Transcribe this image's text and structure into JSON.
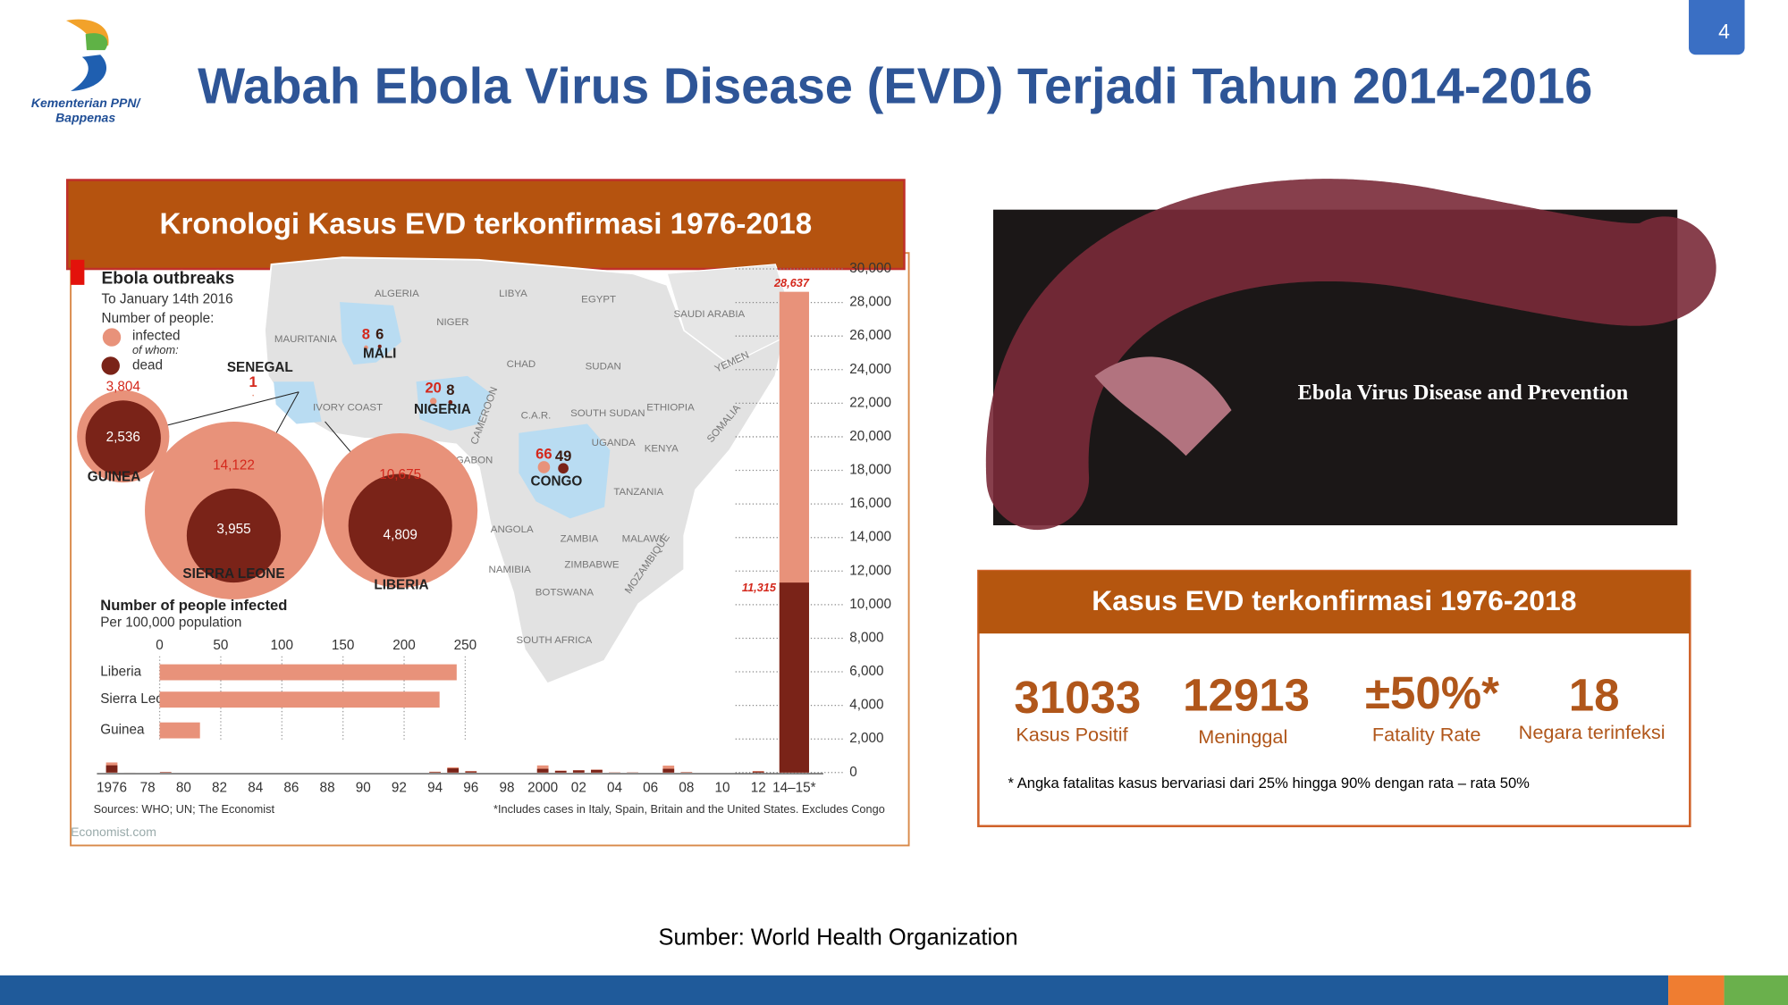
{
  "header": {
    "title": "Wabah Ebola Virus Disease (EVD) Terjadi Tahun 2014-2016",
    "page_number": "4",
    "logo_lines": [
      "Kementerian PPN/",
      "Bappenas"
    ]
  },
  "left_panel": {
    "heading": "Kronologi Kasus EVD terkonfirmasi 1976-2018",
    "credit": "Economist.com",
    "map_labels": [
      "ALGERIA",
      "LIBYA",
      "EGYPT",
      "SAUDI ARABIA",
      "MAURITANIA",
      "NIGER",
      "CHAD",
      "SUDAN",
      "YEMEN",
      "IVORY COAST",
      "CAMEROON",
      "C.A.R.",
      "SOUTH SUDAN",
      "ETHIOPIA",
      "SOMALIA",
      "GABON",
      "UGANDA",
      "KENYA",
      "TANZANIA",
      "ANGOLA",
      "ZAMBIA",
      "MALAWI",
      "MOZAMBIQUE",
      "NAMIBIA",
      "ZIMBABWE",
      "BOTSWANA",
      "SOUTH AFRICA"
    ]
  },
  "chart_data": [
    {
      "type": "bar",
      "title": "Ebola outbreaks",
      "subtitle": "To January 14th 2016",
      "legend_title": "Number of people:",
      "legend_note": "of whom:",
      "sources": "Sources: WHO; UN; The Economist",
      "footnote": "*Includes cases in Italy, Spain, Britain and the United States. Excludes Congo",
      "categories": [
        "1976",
        null,
        "78",
        null,
        "80",
        null,
        "82",
        null,
        "84",
        null,
        "86",
        null,
        "88",
        null,
        "90",
        null,
        "92",
        null,
        "94",
        null,
        "96",
        null,
        "98",
        null,
        "2000",
        null,
        "02",
        null,
        "04",
        null,
        "06",
        null,
        "08",
        null,
        "10",
        null,
        "12",
        null,
        "14–15*"
      ],
      "series": [
        {
          "name": "infected",
          "color": "#e8927a",
          "values": [
            602,
            1,
            null,
            34,
            null,
            null,
            null,
            null,
            null,
            null,
            null,
            null,
            null,
            null,
            null,
            null,
            null,
            null,
            52,
            315,
            91,
            null,
            null,
            null,
            425,
            122,
            143,
            178,
            17,
            12,
            null,
            413,
            32,
            null,
            null,
            null,
            95,
            null,
            28637
          ],
          "value_labels": [
            null,
            null,
            null,
            null,
            null,
            null,
            null,
            null,
            null,
            null,
            null,
            null,
            null,
            null,
            null,
            null,
            null,
            null,
            null,
            null,
            null,
            null,
            null,
            null,
            null,
            null,
            null,
            null,
            null,
            null,
            null,
            null,
            null,
            null,
            null,
            null,
            null,
            null,
            "28,637"
          ]
        },
        {
          "name": "dead",
          "color": "#7a2318",
          "values": [
            431,
            1,
            null,
            22,
            null,
            null,
            null,
            null,
            null,
            null,
            null,
            null,
            null,
            null,
            null,
            null,
            null,
            null,
            31,
            250,
            66,
            null,
            null,
            null,
            224,
            96,
            128,
            157,
            7,
            10,
            null,
            224,
            15,
            null,
            null,
            null,
            57,
            null,
            11315
          ],
          "value_labels": [
            null,
            null,
            null,
            null,
            null,
            null,
            null,
            null,
            null,
            null,
            null,
            null,
            null,
            null,
            null,
            null,
            null,
            null,
            null,
            null,
            null,
            null,
            null,
            null,
            null,
            null,
            null,
            null,
            null,
            null,
            null,
            null,
            null,
            null,
            null,
            null,
            null,
            null,
            "11,315"
          ]
        }
      ],
      "ylim": [
        0,
        30000
      ],
      "yticks": [
        0,
        {
          "value": 2000,
          "label": "2,000"
        },
        {
          "value": 4000,
          "label": "4,000"
        },
        {
          "value": 6000,
          "label": "6,000"
        },
        {
          "value": 8000,
          "label": "8,000"
        },
        {
          "value": 10000,
          "label": "10,000"
        },
        {
          "value": 12000,
          "label": "12,000"
        },
        {
          "value": 14000,
          "label": "14,000"
        },
        {
          "value": 16000,
          "label": "16,000"
        },
        {
          "value": 18000,
          "label": "18,000"
        },
        {
          "value": 20000,
          "label": "20,000"
        },
        {
          "value": 22000,
          "label": "22,000"
        },
        {
          "value": 24000,
          "label": "24,000"
        },
        {
          "value": 26000,
          "label": "26,000"
        },
        {
          "value": 28000,
          "label": "28,000"
        },
        {
          "value": 30000,
          "label": "30,000"
        }
      ],
      "grid": true
    },
    {
      "type": "bubble",
      "categories": [
        "GUINEA",
        "SIERRA LEONE",
        "LIBERIA",
        "SENEGAL",
        "MALI",
        "NIGERIA",
        "CONGO"
      ],
      "series": [
        {
          "color": "#e8927a",
          "values": [
            3804,
            14122,
            10675,
            1,
            8,
            20,
            66
          ],
          "value_labels": [
            "3,804",
            "14,122",
            "10,675",
            "1",
            "8",
            "20",
            "66"
          ]
        },
        {
          "color": "#7a2318",
          "values": [
            2536,
            3955,
            4809,
            null,
            6,
            8,
            49
          ],
          "value_labels": [
            "2,536",
            "3,955",
            "4,809",
            null,
            "6",
            "8",
            "49"
          ]
        }
      ]
    },
    {
      "type": "hbar",
      "title": "Number of people infected",
      "subtitle": "Per 100,000 population",
      "categories": [
        "Liberia",
        "Sierra Leone",
        "Guinea"
      ],
      "values": [
        243,
        229,
        33
      ],
      "color": "#e8927a",
      "xlim": [
        0,
        250
      ],
      "xticks": [
        0,
        50,
        100,
        150,
        200,
        250
      ],
      "grid": true
    }
  ],
  "right_panel": {
    "image_caption": "Ebola Virus Disease and Prevention",
    "heading": "Kasus EVD terkonfirmasi  1976-2018",
    "stats": [
      {
        "value": "31033",
        "label": "Kasus Positif"
      },
      {
        "value": "12913",
        "label": "Meninggal"
      },
      {
        "value": "±50%*",
        "label": "Fatality Rate"
      },
      {
        "value": "18",
        "label": "Negara terinfeksi"
      }
    ],
    "note": "* Angka fatalitas kasus bervariasi dari 25% hingga 90% dengan rata – rata 50%"
  },
  "footer": {
    "source": "Sumber: World Health Organization"
  }
}
